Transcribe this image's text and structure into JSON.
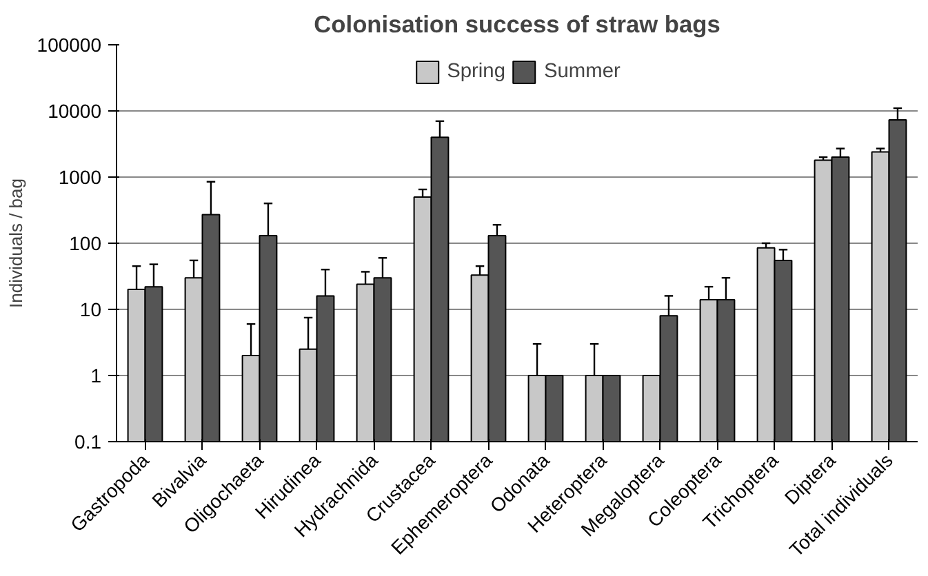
{
  "chart_data": {
    "type": "bar",
    "title": "Colonisation success of straw bags",
    "ylabel": "Individuals / bag",
    "log": true,
    "grid": "y",
    "legend": "top",
    "categories": [
      "Gastropoda",
      "Bivalvia",
      "Oligochaeta",
      "Hirudinea",
      "Hydrachnida",
      "Crustacea",
      "Ephemeroptera",
      "Odonata",
      "Heteroptera",
      "Megaloptera",
      "Coleoptera",
      "Trichoptera",
      "Diptera",
      "Total individuals"
    ],
    "ylim": [
      0.1,
      100000
    ],
    "yticks": [
      0.1,
      1,
      10,
      100,
      1000,
      10000,
      100000
    ],
    "series": [
      {
        "name": "Spring",
        "color": "#c8c8c8",
        "values": [
          20,
          30,
          2,
          2.5,
          24,
          500,
          33,
          1,
          1,
          1,
          14,
          85,
          1800,
          2400
        ],
        "errors": [
          [
            20,
            45
          ],
          [
            30,
            55
          ],
          [
            2,
            6
          ],
          [
            2.5,
            7.5
          ],
          [
            24,
            37
          ],
          [
            500,
            650
          ],
          [
            33,
            45
          ],
          [
            1,
            3
          ],
          [
            1,
            3
          ],
          null,
          [
            14,
            22
          ],
          [
            85,
            100
          ],
          [
            1800,
            2000
          ],
          [
            2400,
            2700
          ]
        ]
      },
      {
        "name": "Summer",
        "color": "#555555",
        "values": [
          22,
          270,
          130,
          16,
          30,
          4000,
          130,
          1,
          1,
          8,
          14,
          55,
          2000,
          7300
        ],
        "errors": [
          [
            22,
            48
          ],
          [
            270,
            850
          ],
          [
            130,
            400
          ],
          [
            16,
            40
          ],
          [
            30,
            60
          ],
          [
            4000,
            7000
          ],
          [
            130,
            190
          ],
          null,
          null,
          [
            8,
            16
          ],
          [
            14,
            30
          ],
          [
            55,
            80
          ],
          [
            2000,
            2700
          ],
          [
            7300,
            11000
          ]
        ]
      }
    ]
  }
}
